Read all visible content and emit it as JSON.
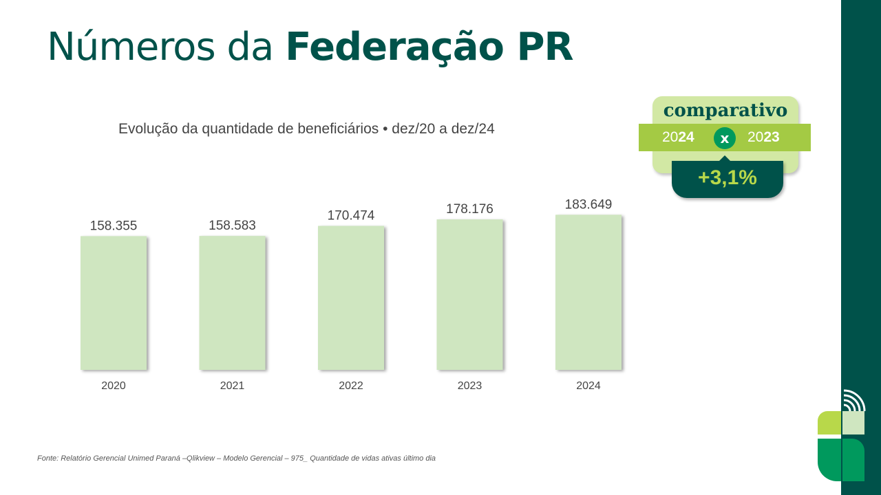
{
  "slide": {
    "title_regular": "Números da ",
    "title_bold": "Federação PR",
    "subtitle": "Evolução da quantidade de beneficiários • dez/20 a dez/24",
    "source": "Fonte: Relatório Gerencial Unimed Paraná –Qlikview – Modelo Gerencial – 975_ Quantidade de vidas ativas último dia"
  },
  "badge": {
    "word": "comparativo",
    "year_left_prefix": "20",
    "year_left_suffix": "24",
    "connector": "x",
    "year_right_prefix": "20",
    "year_right_suffix": "23",
    "change": "+3,1%"
  },
  "colors": {
    "brand_dark": "#00524a",
    "bar_fill": "#cfe6c0",
    "badge_light": "#d2e8a4",
    "badge_strip": "#a4ca44",
    "accent_green": "#00995d",
    "change_text": "#b8d84a"
  },
  "chart_data": {
    "type": "bar",
    "categories": [
      "2020",
      "2021",
      "2022",
      "2023",
      "2024"
    ],
    "values": [
      158355,
      158583,
      170474,
      178176,
      183649
    ],
    "value_labels": [
      "158.355",
      "158.583",
      "170.474",
      "178.176",
      "183.649"
    ],
    "title": "Evolução da quantidade de beneficiários • dez/20 a dez/24",
    "xlabel": "",
    "ylabel": "",
    "ylim": [
      0,
      210000
    ],
    "grid": false,
    "legend": "none"
  }
}
